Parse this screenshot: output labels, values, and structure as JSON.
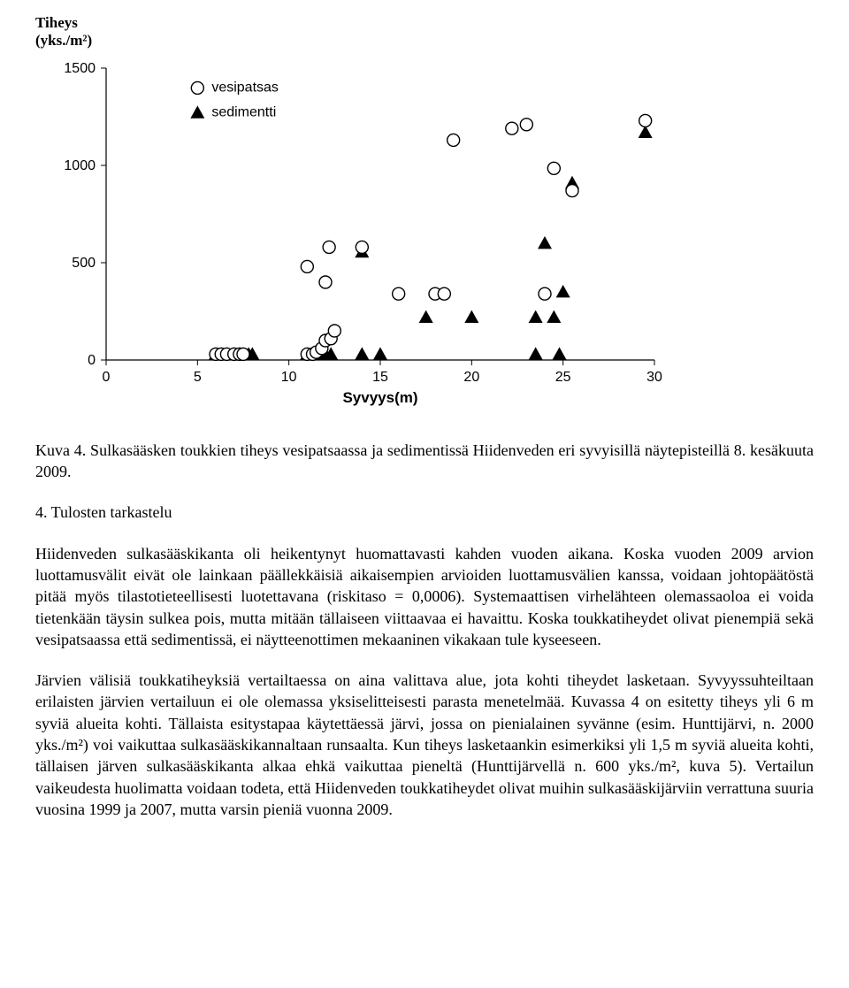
{
  "chart": {
    "type": "scatter",
    "y_title_line1": "Tiheys",
    "y_title_line2": "(yks./m²)",
    "x_title": "Syvyys(m)",
    "xlim": [
      0,
      30
    ],
    "ylim": [
      0,
      1500
    ],
    "xticks": [
      0,
      5,
      10,
      15,
      20,
      25,
      30
    ],
    "yticks": [
      0,
      500,
      1000,
      1500
    ],
    "background_color": "#ffffff",
    "axis_color": "#000000",
    "tick_font_size": 16,
    "axis_title_font_size": 17,
    "legend": {
      "items": [
        {
          "marker": "open-circle",
          "label": "vesipatsas"
        },
        {
          "marker": "filled-triangle",
          "label": "sedimentti"
        }
      ],
      "font_size": 16
    },
    "series": [
      {
        "name": "vesipatsas",
        "marker": "open-circle",
        "marker_color": "#ffffff",
        "marker_stroke": "#000000",
        "marker_size": 7,
        "points": [
          [
            6.0,
            30
          ],
          [
            6.3,
            30
          ],
          [
            6.6,
            30
          ],
          [
            7.0,
            30
          ],
          [
            7.3,
            30
          ],
          [
            7.5,
            30
          ],
          [
            11.0,
            30
          ],
          [
            11.3,
            30
          ],
          [
            11.5,
            40
          ],
          [
            11.8,
            60
          ],
          [
            12.0,
            100
          ],
          [
            12.3,
            110
          ],
          [
            12.5,
            150
          ],
          [
            11.0,
            480
          ],
          [
            12.2,
            580
          ],
          [
            14.0,
            580
          ],
          [
            12.0,
            400
          ],
          [
            16.0,
            340
          ],
          [
            18.0,
            340
          ],
          [
            18.5,
            340
          ],
          [
            19.0,
            1130
          ],
          [
            24.0,
            340
          ],
          [
            24.5,
            985
          ],
          [
            22.2,
            1190
          ],
          [
            23.0,
            1210
          ],
          [
            25.5,
            870
          ],
          [
            29.5,
            1230
          ]
        ]
      },
      {
        "name": "sedimentti",
        "marker": "filled-triangle",
        "marker_color": "#000000",
        "marker_stroke": "#000000",
        "marker_size": 7,
        "points": [
          [
            6.0,
            30
          ],
          [
            6.3,
            30
          ],
          [
            6.6,
            30
          ],
          [
            7.0,
            30
          ],
          [
            7.3,
            30
          ],
          [
            7.5,
            30
          ],
          [
            7.8,
            30
          ],
          [
            8.0,
            30
          ],
          [
            11.0,
            30
          ],
          [
            11.3,
            30
          ],
          [
            11.5,
            30
          ],
          [
            11.8,
            30
          ],
          [
            12.0,
            30
          ],
          [
            12.3,
            30
          ],
          [
            14.0,
            30
          ],
          [
            14.0,
            555
          ],
          [
            15.0,
            30
          ],
          [
            17.5,
            220
          ],
          [
            20.0,
            220
          ],
          [
            23.5,
            30
          ],
          [
            23.5,
            220
          ],
          [
            24.5,
            220
          ],
          [
            24.8,
            30
          ],
          [
            24.0,
            600
          ],
          [
            25.0,
            350
          ],
          [
            25.5,
            910
          ],
          [
            29.5,
            1170
          ]
        ]
      }
    ]
  },
  "caption": "Kuva 4. Sulkasääsken toukkien tiheys vesipatsaassa ja sedimentissä Hiidenveden eri syvyisillä näytepisteillä 8. kesäkuuta 2009.",
  "section_heading": "4. Tulosten tarkastelu",
  "paragraphs": [
    "Hiidenveden sulkasääskikanta oli heikentynyt huomattavasti kahden vuoden aikana. Koska vuoden 2009 arvion luottamusvälit eivät ole lainkaan päällekkäisiä aikaisempien arvioiden luottamusvälien kanssa, voidaan johtopäätöstä pitää myös tilastotieteellisesti luotettavana (riskitaso = 0,0006). Systemaattisen virhelähteen olemassaoloa ei voida tietenkään täysin sulkea pois, mutta mitään tällaiseen viittaavaa ei havaittu. Koska toukkatiheydet olivat pienempiä sekä vesipatsaassa että sedimentissä, ei näytteenottimen mekaaninen vikakaan tule kyseeseen.",
    "Järvien välisiä toukkatiheyksiä vertailtaessa on aina valittava alue, jota kohti tiheydet lasketaan. Syvyyssuhteiltaan erilaisten järvien vertailuun ei ole olemassa yksiselitteisesti parasta menetelmää. Kuvassa 4 on esitetty tiheys yli 6 m syviä alueita kohti. Tällaista esitystapaa käytettäessä järvi, jossa on pienialainen syvänne (esim. Hunttijärvi, n. 2000 yks./m²) voi vaikuttaa sulkasääskikannaltaan runsaalta. Kun tiheys lasketaankin esimerkiksi yli 1,5 m syviä alueita kohti, tällaisen järven sulkasääskikanta alkaa ehkä vaikuttaa pieneltä (Hunttijärvellä n. 600 yks./m², kuva 5). Vertailun vaikeudesta huolimatta voidaan todeta, että Hiidenveden toukkatiheydet olivat muihin sulkasääskijärviin verrattuna suuria vuosina 1999 ja 2007, mutta varsin pieniä vuonna 2009."
  ]
}
